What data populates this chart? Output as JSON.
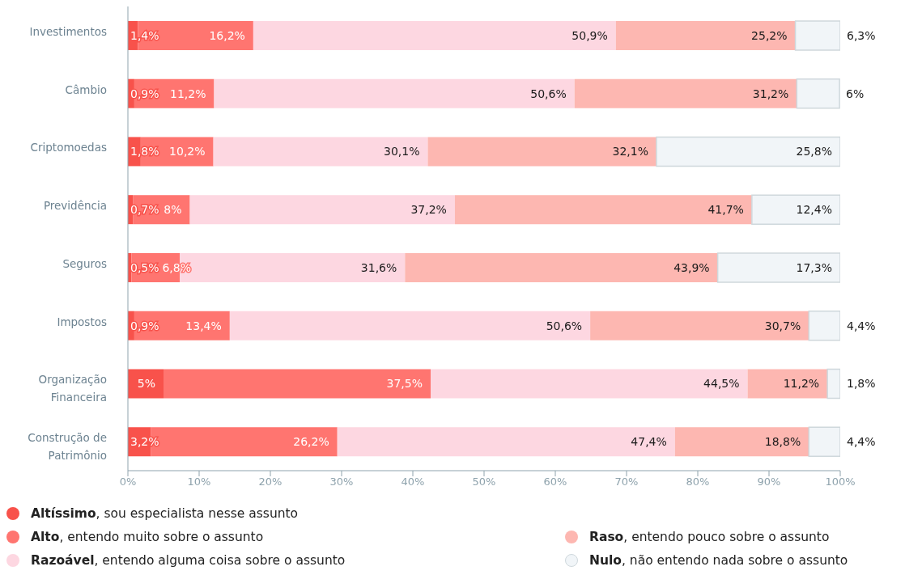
{
  "chart_data": {
    "type": "bar",
    "orientation": "horizontal",
    "stacked": true,
    "categories": [
      "Investimentos",
      "Câmbio",
      "Criptomoedas",
      "Previdência",
      "Seguros",
      "Impostos",
      "Organização Financeira",
      "Construção de Patrimônio"
    ],
    "series": [
      {
        "name": "Altíssimo, sou especialista nesse assunto",
        "color": "#f8524b",
        "values": [
          1.4,
          0.9,
          1.8,
          0.7,
          0.5,
          0.9,
          5,
          3.2
        ],
        "value_labels": [
          "1,4%",
          "0,9%",
          "1,8%",
          "0,7%",
          "0,5%",
          "0,9%",
          "5%",
          "3,2%"
        ]
      },
      {
        "name": "Alto, entendo muito sobre o assunto",
        "color": "#ff7570",
        "values": [
          16.2,
          11.2,
          10.2,
          8,
          6.8,
          13.4,
          37.5,
          26.2
        ],
        "value_labels": [
          "16,2%",
          "11,2%",
          "10,2%",
          "8%",
          "6,8%",
          "13,4%",
          "37,5%",
          "26,2%"
        ]
      },
      {
        "name": "Razoável, entendo alguma coisa sobre o assunto",
        "color": "#fdd7e1",
        "values": [
          50.9,
          50.6,
          30.1,
          37.2,
          31.6,
          50.6,
          44.5,
          47.4
        ],
        "value_labels": [
          "50,9%",
          "50,6%",
          "30,1%",
          "37,2%",
          "31,6%",
          "50,6%",
          "44,5%",
          "47,4%"
        ]
      },
      {
        "name": "Raso, entendo pouco sobre o assunto",
        "color": "#fdb7b1",
        "values": [
          25.2,
          31.2,
          32.1,
          41.7,
          43.9,
          30.7,
          11.2,
          18.8
        ],
        "value_labels": [
          "25,2%",
          "31,2%",
          "32,1%",
          "41,7%",
          "43,9%",
          "30,7%",
          "11,2%",
          "18,8%"
        ]
      },
      {
        "name": "Nulo, não entendo nada sobre o assunto",
        "color": "#f1f5f8",
        "values": [
          6.3,
          6,
          25.8,
          12.4,
          17.3,
          4.4,
          1.8,
          4.4
        ],
        "value_labels": [
          "6,3%",
          "6%",
          "25,8%",
          "12,4%",
          "17,3%",
          "4,4%",
          "1,8%",
          "4,4%"
        ]
      }
    ],
    "xlim": [
      0,
      100
    ],
    "xticks": [
      {
        "value": 0,
        "label": "0%"
      },
      {
        "value": 10,
        "label": "10%"
      },
      {
        "value": 20,
        "label": "20%"
      },
      {
        "value": 30,
        "label": "30%"
      },
      {
        "value": 40,
        "label": "40%"
      },
      {
        "value": 50,
        "label": "50%"
      },
      {
        "value": 60,
        "label": "60%"
      },
      {
        "value": 70,
        "label": "70%"
      },
      {
        "value": 80,
        "label": "80%"
      },
      {
        "value": 90,
        "label": "90%"
      },
      {
        "value": 100,
        "label": "100%"
      }
    ],
    "grid": false,
    "legend": "bottom"
  }
}
